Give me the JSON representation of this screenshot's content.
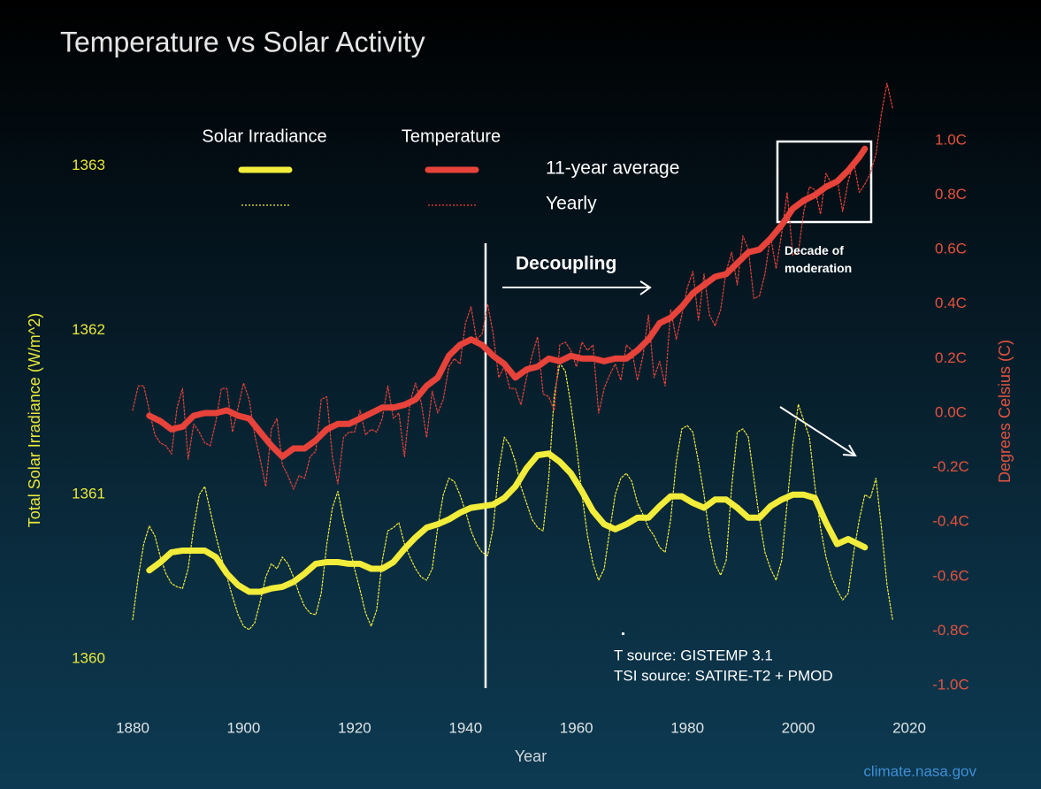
{
  "chart_data": {
    "type": "line",
    "title": "Temperature vs Solar Activity",
    "x_label": "Year",
    "y_label": "Total Solar Irradiance (W/m^2)",
    "y2_label": "Degrees Celsius (C)",
    "xlim": [
      1880,
      2020
    ],
    "xticks": [
      1880,
      1900,
      1920,
      1940,
      1960,
      1980,
      2000,
      2020
    ],
    "ylim": [
      1359.84,
      1363.55
    ],
    "yticks": [
      1360,
      1361,
      1362,
      1363
    ],
    "y2lim": [
      -1.0,
      1.24
    ],
    "y2ticks": [
      {
        "value": -1.0,
        "label": "-1.0C"
      },
      {
        "value": -0.8,
        "label": "-0.8C"
      },
      {
        "value": -0.6,
        "label": "-0.6C"
      },
      {
        "value": -0.4,
        "label": "-0.4C"
      },
      {
        "value": -0.2,
        "label": "-0.2C"
      },
      {
        "value": 0,
        "label": "0.0C"
      },
      {
        "value": 0.2,
        "label": "0.2C"
      },
      {
        "value": 0.4,
        "label": "0.4C"
      },
      {
        "value": 0.6,
        "label": "0.6C"
      },
      {
        "value": 0.8,
        "label": "0.8C"
      },
      {
        "value": 1.0,
        "label": "1.0C"
      }
    ],
    "grid": false,
    "legend_rows": [
      "11-year average",
      "Yearly"
    ],
    "series": [
      {
        "name": "Solar Irradiance",
        "color": "#f2ec3a",
        "axis": "y",
        "average": {
          "x": [
            1883,
            1885,
            1887,
            1889,
            1891,
            1893,
            1895,
            1897,
            1899,
            1901,
            1903,
            1905,
            1907,
            1909,
            1911,
            1913,
            1915,
            1917,
            1919,
            1921,
            1923,
            1925,
            1927,
            1929,
            1931,
            1933,
            1935,
            1937,
            1939,
            1941,
            1943,
            1945,
            1947,
            1949,
            1951,
            1953,
            1955,
            1957,
            1959,
            1961,
            1963,
            1965,
            1967,
            1969,
            1971,
            1973,
            1975,
            1977,
            1979,
            1981,
            1983,
            1985,
            1987,
            1989,
            1991,
            1993,
            1995,
            1997,
            1999,
            2001,
            2003,
            2005,
            2007,
            2009,
            2012
          ],
          "values": [
            1360.54,
            1360.59,
            1360.65,
            1360.66,
            1360.66,
            1360.66,
            1360.62,
            1360.52,
            1360.45,
            1360.41,
            1360.41,
            1360.43,
            1360.44,
            1360.47,
            1360.52,
            1360.58,
            1360.59,
            1360.59,
            1360.58,
            1360.58,
            1360.55,
            1360.55,
            1360.59,
            1360.67,
            1360.74,
            1360.8,
            1360.82,
            1360.85,
            1360.89,
            1360.92,
            1360.93,
            1360.94,
            1360.98,
            1361.05,
            1361.16,
            1361.24,
            1361.25,
            1361.2,
            1361.13,
            1361.02,
            1360.9,
            1360.82,
            1360.79,
            1360.82,
            1360.86,
            1360.86,
            1360.93,
            1360.99,
            1360.99,
            1360.95,
            1360.92,
            1360.97,
            1360.97,
            1360.92,
            1360.86,
            1360.86,
            1360.93,
            1360.97,
            1361.0,
            1361.0,
            1360.98,
            1360.83,
            1360.7,
            1360.73,
            1360.68
          ]
        },
        "yearly": {
          "x": [
            1880,
            1881,
            1882,
            1883,
            1884,
            1885,
            1886,
            1887,
            1888,
            1889,
            1890,
            1891,
            1892,
            1893,
            1894,
            1895,
            1896,
            1897,
            1898,
            1899,
            1900,
            1901,
            1902,
            1903,
            1904,
            1905,
            1906,
            1907,
            1908,
            1909,
            1910,
            1911,
            1912,
            1913,
            1914,
            1915,
            1916,
            1917,
            1918,
            1919,
            1920,
            1921,
            1922,
            1923,
            1924,
            1925,
            1926,
            1927,
            1928,
            1929,
            1930,
            1931,
            1932,
            1933,
            1934,
            1935,
            1936,
            1937,
            1938,
            1939,
            1940,
            1941,
            1942,
            1943,
            1944,
            1945,
            1946,
            1947,
            1948,
            1949,
            1950,
            1951,
            1952,
            1953,
            1954,
            1955,
            1956,
            1957,
            1958,
            1959,
            1960,
            1961,
            1962,
            1963,
            1964,
            1965,
            1966,
            1967,
            1968,
            1969,
            1970,
            1971,
            1972,
            1973,
            1974,
            1975,
            1976,
            1977,
            1978,
            1979,
            1980,
            1981,
            1982,
            1983,
            1984,
            1985,
            1986,
            1987,
            1988,
            1989,
            1990,
            1991,
            1992,
            1993,
            1994,
            1995,
            1996,
            1997,
            1998,
            1999,
            2000,
            2001,
            2002,
            2003,
            2004,
            2005,
            2006,
            2007,
            2008,
            2009,
            2010,
            2011,
            2012,
            2013,
            2014,
            2015,
            2016,
            2017
          ],
          "values": [
            1360.24,
            1360.5,
            1360.7,
            1360.81,
            1360.75,
            1360.62,
            1360.52,
            1360.46,
            1360.44,
            1360.43,
            1360.55,
            1360.8,
            1361.0,
            1361.05,
            1360.9,
            1360.75,
            1360.62,
            1360.5,
            1360.38,
            1360.27,
            1360.2,
            1360.18,
            1360.22,
            1360.35,
            1360.5,
            1360.58,
            1360.55,
            1360.62,
            1360.58,
            1360.5,
            1360.4,
            1360.32,
            1360.28,
            1360.27,
            1360.4,
            1360.7,
            1360.92,
            1361.02,
            1360.85,
            1360.7,
            1360.55,
            1360.42,
            1360.28,
            1360.2,
            1360.3,
            1360.6,
            1360.78,
            1360.8,
            1360.83,
            1360.7,
            1360.62,
            1360.55,
            1360.5,
            1360.48,
            1360.55,
            1360.8,
            1361.0,
            1361.1,
            1361.08,
            1361.0,
            1360.9,
            1360.78,
            1360.7,
            1360.65,
            1360.63,
            1360.8,
            1361.15,
            1361.35,
            1361.3,
            1361.2,
            1361.05,
            1360.95,
            1360.85,
            1360.8,
            1360.78,
            1361.1,
            1361.6,
            1361.8,
            1361.75,
            1361.55,
            1361.3,
            1361.0,
            1360.75,
            1360.58,
            1360.48,
            1360.55,
            1360.78,
            1361.0,
            1361.1,
            1361.13,
            1361.08,
            1360.95,
            1360.88,
            1360.8,
            1360.75,
            1360.68,
            1360.65,
            1360.85,
            1361.2,
            1361.4,
            1361.42,
            1361.38,
            1361.2,
            1361.0,
            1360.75,
            1360.58,
            1360.51,
            1360.6,
            1361.05,
            1361.38,
            1361.4,
            1361.35,
            1361.1,
            1360.85,
            1360.65,
            1360.55,
            1360.48,
            1360.6,
            1360.95,
            1361.3,
            1361.55,
            1361.45,
            1361.35,
            1361.05,
            1360.8,
            1360.62,
            1360.5,
            1360.42,
            1360.36,
            1360.4,
            1360.65,
            1360.85,
            1361.0,
            1360.98,
            1361.1,
            1360.8,
            1360.45,
            1360.24
          ]
        }
      },
      {
        "name": "Temperature",
        "color": "#e8433a",
        "axis": "y2",
        "average": {
          "x": [
            1883,
            1885,
            1887,
            1889,
            1891,
            1893,
            1895,
            1897,
            1899,
            1901,
            1903,
            1905,
            1907,
            1909,
            1911,
            1913,
            1915,
            1917,
            1919,
            1921,
            1923,
            1925,
            1927,
            1929,
            1931,
            1933,
            1935,
            1937,
            1939,
            1941,
            1943,
            1945,
            1947,
            1949,
            1951,
            1953,
            1955,
            1957,
            1959,
            1961,
            1963,
            1965,
            1967,
            1969,
            1971,
            1973,
            1975,
            1977,
            1979,
            1981,
            1983,
            1985,
            1987,
            1989,
            1991,
            1993,
            1995,
            1997,
            1999,
            2001,
            2003,
            2005,
            2007,
            2009,
            2011,
            2012
          ],
          "values": [
            -0.01,
            -0.03,
            -0.06,
            -0.05,
            -0.01,
            0.0,
            0.0,
            0.01,
            -0.01,
            -0.02,
            -0.07,
            -0.12,
            -0.16,
            -0.13,
            -0.13,
            -0.1,
            -0.06,
            -0.04,
            -0.04,
            -0.02,
            0.0,
            0.02,
            0.02,
            0.03,
            0.05,
            0.1,
            0.13,
            0.21,
            0.25,
            0.27,
            0.25,
            0.21,
            0.18,
            0.13,
            0.16,
            0.17,
            0.2,
            0.19,
            0.21,
            0.2,
            0.2,
            0.19,
            0.2,
            0.2,
            0.23,
            0.27,
            0.33,
            0.35,
            0.39,
            0.44,
            0.47,
            0.5,
            0.51,
            0.55,
            0.59,
            0.6,
            0.64,
            0.69,
            0.75,
            0.78,
            0.8,
            0.83,
            0.85,
            0.89,
            0.94,
            0.97
          ]
        },
        "yearly": {
          "x": [
            1880,
            1881,
            1882,
            1883,
            1884,
            1885,
            1886,
            1887,
            1888,
            1889,
            1890,
            1891,
            1892,
            1893,
            1894,
            1895,
            1896,
            1897,
            1898,
            1899,
            1900,
            1901,
            1902,
            1903,
            1904,
            1905,
            1906,
            1907,
            1908,
            1909,
            1910,
            1911,
            1912,
            1913,
            1914,
            1915,
            1916,
            1917,
            1918,
            1919,
            1920,
            1921,
            1922,
            1923,
            1924,
            1925,
            1926,
            1927,
            1928,
            1929,
            1930,
            1931,
            1932,
            1933,
            1934,
            1935,
            1936,
            1937,
            1938,
            1939,
            1940,
            1941,
            1942,
            1943,
            1944,
            1945,
            1946,
            1947,
            1948,
            1949,
            1950,
            1951,
            1952,
            1953,
            1954,
            1955,
            1956,
            1957,
            1958,
            1959,
            1960,
            1961,
            1962,
            1963,
            1964,
            1965,
            1966,
            1967,
            1968,
            1969,
            1970,
            1971,
            1972,
            1973,
            1974,
            1975,
            1976,
            1977,
            1978,
            1979,
            1980,
            1981,
            1982,
            1983,
            1984,
            1985,
            1986,
            1987,
            1988,
            1989,
            1990,
            1991,
            1992,
            1993,
            1994,
            1995,
            1996,
            1997,
            1998,
            1999,
            2000,
            2001,
            2002,
            2003,
            2004,
            2005,
            2006,
            2007,
            2008,
            2009,
            2010,
            2011,
            2012,
            2013,
            2014,
            2015,
            2016,
            2017
          ],
          "values": [
            0.01,
            0.1,
            0.1,
            0.01,
            -0.08,
            -0.11,
            -0.12,
            -0.15,
            0.02,
            0.09,
            -0.17,
            -0.04,
            -0.07,
            -0.11,
            -0.12,
            -0.03,
            0.09,
            0.09,
            -0.07,
            0.02,
            0.11,
            0.05,
            -0.08,
            -0.17,
            -0.27,
            -0.06,
            -0.02,
            -0.19,
            -0.23,
            -0.28,
            -0.23,
            -0.24,
            -0.16,
            -0.14,
            0.05,
            0.06,
            -0.16,
            -0.26,
            -0.09,
            -0.07,
            -0.07,
            0.01,
            -0.08,
            -0.06,
            -0.07,
            -0.02,
            0.1,
            -0.02,
            0.0,
            -0.16,
            0.04,
            0.11,
            0.04,
            -0.09,
            0.08,
            0.0,
            0.05,
            0.17,
            0.2,
            0.18,
            0.33,
            0.39,
            0.27,
            0.29,
            0.4,
            0.29,
            0.13,
            0.17,
            0.09,
            0.09,
            0.03,
            0.13,
            0.21,
            0.28,
            0.07,
            0.06,
            0.01,
            0.25,
            0.26,
            0.23,
            0.17,
            0.26,
            0.23,
            0.25,
            0.0,
            0.09,
            0.14,
            0.18,
            0.12,
            0.25,
            0.23,
            0.12,
            0.21,
            0.36,
            0.13,
            0.19,
            0.1,
            0.38,
            0.27,
            0.36,
            0.46,
            0.52,
            0.34,
            0.51,
            0.36,
            0.32,
            0.38,
            0.52,
            0.59,
            0.47,
            0.65,
            0.6,
            0.42,
            0.43,
            0.51,
            0.65,
            0.53,
            0.66,
            0.81,
            0.58,
            0.59,
            0.74,
            0.83,
            0.82,
            0.73,
            0.88,
            0.84,
            0.86,
            0.74,
            0.85,
            0.92,
            0.81,
            0.84,
            0.88,
            0.95,
            1.1,
            1.21,
            1.12
          ]
        }
      }
    ],
    "annotations": {
      "decoupling": "Decoupling",
      "moderation": "Decade of moderation",
      "sources": [
        "T source: GISTEMP 3.1",
        "TSI source: SATIRE-T2 + PMOD"
      ],
      "credit": "climate.nasa.gov"
    }
  }
}
